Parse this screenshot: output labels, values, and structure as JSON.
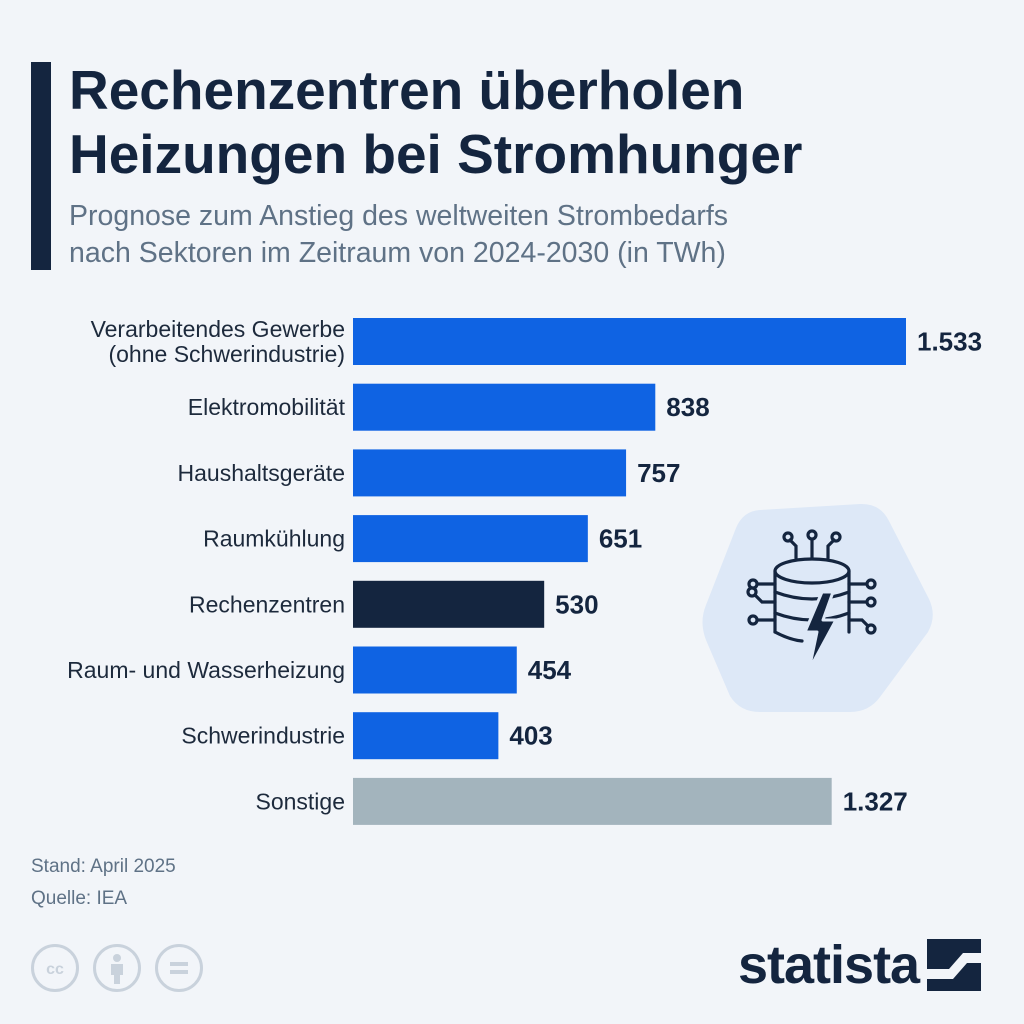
{
  "header": {
    "title_line1": "Rechenzentren überholen",
    "title_line2": "Heizungen bei Stromhunger",
    "subtitle_line1": "Prognose zum Anstieg des weltweiten Strombedarfs",
    "subtitle_line2": "nach Sektoren im Zeitraum von 2024-2030 (in TWh)"
  },
  "chart_data": {
    "type": "bar",
    "orientation": "horizontal",
    "categories": [
      [
        "Verarbeitendes Gewerbe",
        "(ohne Schwerindustrie)"
      ],
      [
        "Elektromobilität"
      ],
      [
        "Haushaltsgeräte"
      ],
      [
        "Raumkühlung"
      ],
      [
        "Rechenzentren"
      ],
      [
        "Raum- und Wasserheizung"
      ],
      [
        "Schwerindustrie"
      ],
      [
        "Sonstige"
      ]
    ],
    "values": [
      1533,
      838,
      757,
      651,
      530,
      454,
      403,
      1327
    ],
    "value_labels": [
      "1.533",
      "838",
      "757",
      "651",
      "530",
      "454",
      "403",
      "1.327"
    ],
    "bar_colors": [
      "#0f63e3",
      "#0f63e3",
      "#0f63e3",
      "#0f63e3",
      "#14253f",
      "#0f63e3",
      "#0f63e3",
      "#a3b4bd"
    ],
    "unit": "TWh",
    "xlim": [
      0,
      1533
    ],
    "grid": false,
    "legend": "none"
  },
  "footer": {
    "stand": "Stand: April 2025",
    "source": "Quelle: IEA"
  },
  "icons": {
    "license": [
      "cc-icon",
      "attribution-icon",
      "no-derivatives-icon"
    ],
    "illustration": "data-center-lightning-icon"
  },
  "brand": {
    "name": "statista",
    "color": "#14253f"
  }
}
